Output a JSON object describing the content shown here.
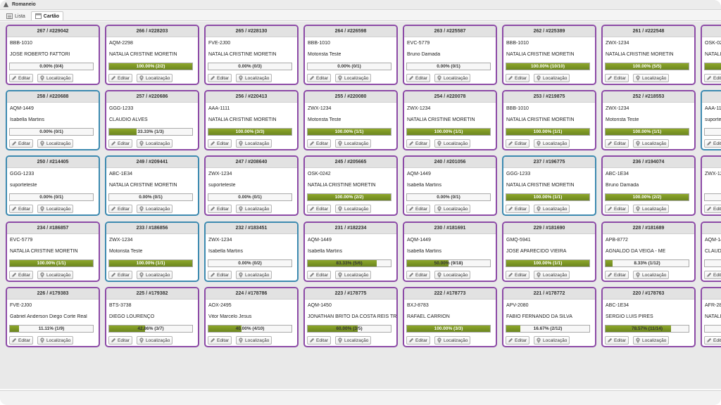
{
  "app": {
    "title": "Romaneio"
  },
  "tabs": [
    {
      "label": "Lista",
      "icon": "list-icon",
      "active": false
    },
    {
      "label": "Cartão",
      "icon": "card-icon",
      "active": true
    }
  ],
  "labels": {
    "edit": "Editar",
    "location": "Localização"
  },
  "colors": {
    "purple_border": "#8c4aa6",
    "blue_border": "#3d8ab0",
    "progress": "#7a9425"
  },
  "cards": [
    {
      "header": "267 / #229042",
      "plate": "BBB-1010",
      "driver": "JOSE ROBERTO FATTORI",
      "progress_text": "0.00% (0/4)",
      "progress": 0,
      "border": "purple"
    },
    {
      "header": "266 / #228203",
      "plate": "AQM-2298",
      "driver": "NATALIA CRISTINE MORETIN",
      "progress_text": "100.00% (2/2)",
      "progress": 100,
      "border": "purple"
    },
    {
      "header": "265 / #228130",
      "plate": "FVE-2J00",
      "driver": "NATALIA CRISTINE MORETIN",
      "progress_text": "0.00% (0/3)",
      "progress": 0,
      "border": "purple"
    },
    {
      "header": "264 / #226598",
      "plate": "BBB-1010",
      "driver": "Motorista Teste",
      "progress_text": "0.00% (0/1)",
      "progress": 0,
      "border": "purple"
    },
    {
      "header": "263 / #225587",
      "plate": "EVC-5779",
      "driver": "Bruno Damada",
      "progress_text": "0.00% (0/1)",
      "progress": 0,
      "border": "purple"
    },
    {
      "header": "262 / #225389",
      "plate": "BBB-1010",
      "driver": "NATALIA CRISTINE MORETIN",
      "progress_text": "100.00% (10/10)",
      "progress": 100,
      "border": "purple"
    },
    {
      "header": "261 / #222548",
      "plate": "ZWX-1234",
      "driver": "NATALIA CRISTINE MORETIN",
      "progress_text": "100.00% (5/5)",
      "progress": 100,
      "border": "purple"
    },
    {
      "header": "",
      "plate": "OSK-024",
      "driver": "NATALI",
      "progress_text": "",
      "progress": 100,
      "border": "purple"
    },
    {
      "header": "258 / #220688",
      "plate": "AQM-1449",
      "driver": "Isabella Martins",
      "progress_text": "0.00% (0/1)",
      "progress": 0,
      "border": "blue"
    },
    {
      "header": "257 / #220686",
      "plate": "GGG-1233",
      "driver": "CLAUDIO ALVES",
      "progress_text": "33.33% (1/3)",
      "progress": 33.33,
      "border": "purple"
    },
    {
      "header": "256 / #220413",
      "plate": "AAA-1111",
      "driver": "NATALIA CRISTINE MORETIN",
      "progress_text": "100.00% (3/3)",
      "progress": 100,
      "border": "purple"
    },
    {
      "header": "255 / #220080",
      "plate": "ZWX-1234",
      "driver": "Motorista Teste",
      "progress_text": "100.00% (1/1)",
      "progress": 100,
      "border": "purple"
    },
    {
      "header": "254 / #220078",
      "plate": "ZWX-1234",
      "driver": "NATALIA CRISTINE MORETIN",
      "progress_text": "100.00% (1/1)",
      "progress": 100,
      "border": "purple"
    },
    {
      "header": "253 / #219875",
      "plate": "BBB-1010",
      "driver": "NATALIA CRISTINE MORETIN",
      "progress_text": "100.00% (1/1)",
      "progress": 100,
      "border": "purple"
    },
    {
      "header": "252 / #218553",
      "plate": "ZWX-1234",
      "driver": "Motorista Teste",
      "progress_text": "100.00% (1/1)",
      "progress": 100,
      "border": "purple"
    },
    {
      "header": "",
      "plate": "AAA-111",
      "driver": "suportet",
      "progress_text": "",
      "progress": 0,
      "border": "blue"
    },
    {
      "header": "250 / #214405",
      "plate": "GGG-1233",
      "driver": "suporteteste",
      "progress_text": "0.00% (0/1)",
      "progress": 0,
      "border": "blue"
    },
    {
      "header": "249 / #209441",
      "plate": "ABC-1E34",
      "driver": "NATALIA CRISTINE MORETIN",
      "progress_text": "0.00% (0/1)",
      "progress": 0,
      "border": "blue"
    },
    {
      "header": "247 / #208640",
      "plate": "ZWX-1234",
      "driver": "suporteteste",
      "progress_text": "0.00% (0/1)",
      "progress": 0,
      "border": "purple"
    },
    {
      "header": "245 / #205665",
      "plate": "OSK-0242",
      "driver": "NATALIA CRISTINE MORETIN",
      "progress_text": "100.00% (2/2)",
      "progress": 100,
      "border": "purple"
    },
    {
      "header": "240 / #201056",
      "plate": "AQM-1449",
      "driver": "Isabella Martins",
      "progress_text": "0.00% (0/1)",
      "progress": 0,
      "border": "purple"
    },
    {
      "header": "237 / #196775",
      "plate": "GGG-1233",
      "driver": "NATALIA CRISTINE MORETIN",
      "progress_text": "100.00% (1/1)",
      "progress": 100,
      "border": "blue"
    },
    {
      "header": "236 / #194074",
      "plate": "ABC-1E34",
      "driver": "Bruno Damada",
      "progress_text": "100.00% (2/2)",
      "progress": 100,
      "border": "purple"
    },
    {
      "header": "",
      "plate": "ZWX-12",
      "driver": "",
      "progress_text": "",
      "progress": 0,
      "border": "purple"
    },
    {
      "header": "234 / #186857",
      "plate": "EVC-5779",
      "driver": "NATALIA CRISTINE MORETIN",
      "progress_text": "100.00% (1/1)",
      "progress": 100,
      "border": "purple"
    },
    {
      "header": "233 / #186856",
      "plate": "ZWX-1234",
      "driver": "Motorista Teste",
      "progress_text": "100.00% (1/1)",
      "progress": 100,
      "border": "blue"
    },
    {
      "header": "232 / #183451",
      "plate": "ZWX-1234",
      "driver": "Isabella Martins",
      "progress_text": "0.00% (0/2)",
      "progress": 0,
      "border": "blue"
    },
    {
      "header": "231 / #182234",
      "plate": "AQM-1449",
      "driver": "Isabella Martins",
      "progress_text": "83.33% (5/6)",
      "progress": 83.33,
      "border": "purple"
    },
    {
      "header": "230 / #181691",
      "plate": "AQM-1449",
      "driver": "Isabella Martins",
      "progress_text": "50.00% (9/18)",
      "progress": 50,
      "border": "purple"
    },
    {
      "header": "229 / #181690",
      "plate": "GMQ-5941",
      "driver": "JOSE APARECIDO VIEIRA",
      "progress_text": "100.00% (1/1)",
      "progress": 100,
      "border": "purple"
    },
    {
      "header": "228 / #181689",
      "plate": "APB-8772",
      "driver": "AGNALDO DA VEIGA - ME",
      "progress_text": "8.33% (1/12)",
      "progress": 8.33,
      "border": "purple"
    },
    {
      "header": "",
      "plate": "AQM-14",
      "driver": "CLAUDI",
      "progress_text": "",
      "progress": 0,
      "border": "purple"
    },
    {
      "header": "226 / #179383",
      "plate": "FVE-2J00",
      "driver": "Gabriel Anderson Diego Corte Real",
      "progress_text": "11.11% (1/9)",
      "progress": 11.11,
      "border": "purple"
    },
    {
      "header": "225 / #179382",
      "plate": "BTS-3738",
      "driver": "DIEGO LOURENÇO",
      "progress_text": "42.86% (3/7)",
      "progress": 42.86,
      "border": "purple"
    },
    {
      "header": "224 / #178786",
      "plate": "AOX-2495",
      "driver": "Vitor Marcelo Jesus",
      "progress_text": "40.00% (4/10)",
      "progress": 40,
      "border": "purple"
    },
    {
      "header": "223 / #178775",
      "plate": "AQM-1450",
      "driver": "JONATHAN BRITO DA COSTA REIS TRA",
      "progress_text": "60.00% (3/5)",
      "progress": 60,
      "border": "purple"
    },
    {
      "header": "222 / #178773",
      "plate": "BXJ-8783",
      "driver": "RAFAEL CARRION",
      "progress_text": "100.00% (3/3)",
      "progress": 100,
      "border": "purple"
    },
    {
      "header": "221 / #178772",
      "plate": "APV-2080",
      "driver": "FABIO FERNANDO DA SILVA",
      "progress_text": "16.67% (2/12)",
      "progress": 16.67,
      "border": "purple"
    },
    {
      "header": "220 / #178763",
      "plate": "ABC-1E34",
      "driver": "SERGIO LUIS PIRES",
      "progress_text": "78.57% (11/14)",
      "progress": 78.57,
      "border": "purple"
    },
    {
      "header": "",
      "plate": "AFR-281",
      "driver": "NATALI",
      "progress_text": "",
      "progress": 0,
      "border": "purple"
    }
  ]
}
